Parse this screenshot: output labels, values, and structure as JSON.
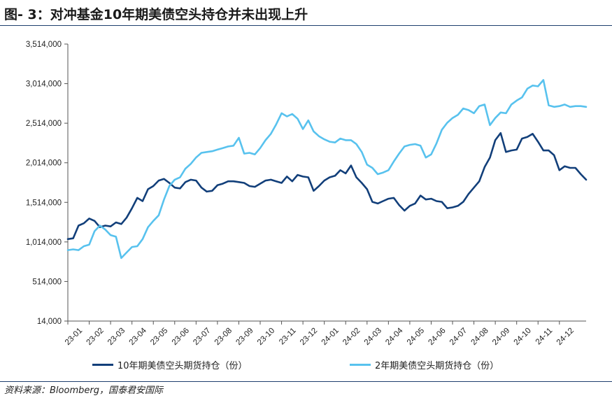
{
  "header": {
    "title": "图- 3：对冲基金10年期美债空头持仓并未出现上升"
  },
  "footer": {
    "source": "资料来源：Bloomberg，国泰君安国际"
  },
  "colors": {
    "series_10y": "#123f7a",
    "series_2y": "#58c2ee",
    "rule": "#1f3f6e",
    "axis": "#555555"
  },
  "chart_data": {
    "type": "line",
    "title": "",
    "xlabel": "",
    "ylabel": "",
    "ylim": [
      14000,
      3514000
    ],
    "yticks": [
      14000,
      514000,
      1014000,
      1514000,
      2014000,
      2514000,
      3014000,
      3514000
    ],
    "ytick_labels": [
      "14,000",
      "514,000",
      "1,014,000",
      "1,514,000",
      "2,014,000",
      "2,514,000",
      "3,014,000",
      "3,514,000"
    ],
    "xlim": [
      0,
      23.5
    ],
    "xticks": [
      0,
      1,
      2,
      3,
      4,
      5,
      6,
      7,
      8,
      9,
      10,
      11,
      12,
      13,
      14,
      15,
      16,
      17,
      18,
      19,
      20,
      21,
      22,
      23
    ],
    "xtick_labels": [
      "23-01",
      "23-02",
      "23-03",
      "23-04",
      "23-05",
      "23-06",
      "23-07",
      "23-08",
      "23-09",
      "23-10",
      "23-11",
      "23-12",
      "24-01",
      "24-02",
      "24-03",
      "24-04",
      "24-05",
      "24-06",
      "24-07",
      "24-08",
      "24-09",
      "24-10",
      "24-11",
      "24-12"
    ],
    "grid": false,
    "legend_position": "bottom",
    "series": [
      {
        "name": "10年期美债空头期货持仓（份）",
        "color": "#123f7a",
        "points": [
          [
            0.0,
            1050000
          ],
          [
            0.25,
            1060000
          ],
          [
            0.5,
            1220000
          ],
          [
            0.75,
            1250000
          ],
          [
            1.0,
            1310000
          ],
          [
            1.25,
            1280000
          ],
          [
            1.5,
            1200000
          ],
          [
            1.75,
            1220000
          ],
          [
            2.0,
            1210000
          ],
          [
            2.25,
            1260000
          ],
          [
            2.5,
            1240000
          ],
          [
            2.75,
            1320000
          ],
          [
            3.0,
            1440000
          ],
          [
            3.25,
            1570000
          ],
          [
            3.5,
            1530000
          ],
          [
            3.75,
            1680000
          ],
          [
            4.0,
            1720000
          ],
          [
            4.25,
            1790000
          ],
          [
            4.5,
            1810000
          ],
          [
            4.75,
            1760000
          ],
          [
            5.0,
            1700000
          ],
          [
            5.25,
            1690000
          ],
          [
            5.5,
            1770000
          ],
          [
            5.75,
            1800000
          ],
          [
            6.0,
            1790000
          ],
          [
            6.25,
            1700000
          ],
          [
            6.5,
            1650000
          ],
          [
            6.75,
            1660000
          ],
          [
            7.0,
            1730000
          ],
          [
            7.25,
            1750000
          ],
          [
            7.5,
            1780000
          ],
          [
            7.75,
            1780000
          ],
          [
            8.0,
            1770000
          ],
          [
            8.25,
            1760000
          ],
          [
            8.5,
            1720000
          ],
          [
            8.75,
            1710000
          ],
          [
            9.0,
            1750000
          ],
          [
            9.25,
            1790000
          ],
          [
            9.5,
            1800000
          ],
          [
            9.75,
            1780000
          ],
          [
            10.0,
            1760000
          ],
          [
            10.25,
            1840000
          ],
          [
            10.5,
            1780000
          ],
          [
            10.75,
            1860000
          ],
          [
            11.0,
            1840000
          ],
          [
            11.25,
            1830000
          ],
          [
            11.5,
            1660000
          ],
          [
            11.75,
            1720000
          ],
          [
            12.0,
            1790000
          ],
          [
            12.25,
            1830000
          ],
          [
            12.5,
            1850000
          ],
          [
            12.75,
            1920000
          ],
          [
            13.0,
            1880000
          ],
          [
            13.25,
            1980000
          ],
          [
            13.5,
            1830000
          ],
          [
            13.75,
            1760000
          ],
          [
            14.0,
            1680000
          ],
          [
            14.25,
            1520000
          ],
          [
            14.5,
            1500000
          ],
          [
            14.75,
            1530000
          ],
          [
            15.0,
            1560000
          ],
          [
            15.25,
            1570000
          ],
          [
            15.5,
            1480000
          ],
          [
            15.75,
            1410000
          ],
          [
            16.0,
            1470000
          ],
          [
            16.25,
            1500000
          ],
          [
            16.5,
            1600000
          ],
          [
            16.75,
            1550000
          ],
          [
            17.0,
            1560000
          ],
          [
            17.25,
            1530000
          ],
          [
            17.5,
            1520000
          ],
          [
            17.75,
            1440000
          ],
          [
            18.0,
            1450000
          ],
          [
            18.25,
            1470000
          ],
          [
            18.5,
            1520000
          ],
          [
            18.75,
            1620000
          ],
          [
            19.0,
            1700000
          ],
          [
            19.25,
            1780000
          ],
          [
            19.5,
            1960000
          ],
          [
            19.75,
            2080000
          ],
          [
            20.0,
            2300000
          ],
          [
            20.25,
            2390000
          ],
          [
            20.5,
            2150000
          ],
          [
            20.75,
            2170000
          ],
          [
            21.0,
            2180000
          ],
          [
            21.25,
            2320000
          ],
          [
            21.5,
            2340000
          ],
          [
            21.75,
            2380000
          ],
          [
            22.0,
            2280000
          ],
          [
            22.25,
            2170000
          ],
          [
            22.5,
            2170000
          ],
          [
            22.75,
            2110000
          ],
          [
            23.0,
            1920000
          ],
          [
            23.25,
            1970000
          ],
          [
            23.5,
            1950000
          ],
          [
            23.75,
            1950000
          ],
          [
            24.0,
            1870000
          ],
          [
            24.25,
            1800000
          ]
        ]
      },
      {
        "name": "2年期美债空头期货持仓（份）",
        "color": "#58c2ee",
        "points": [
          [
            0.0,
            910000
          ],
          [
            0.25,
            920000
          ],
          [
            0.5,
            910000
          ],
          [
            0.75,
            960000
          ],
          [
            1.0,
            980000
          ],
          [
            1.25,
            1150000
          ],
          [
            1.5,
            1220000
          ],
          [
            1.75,
            1170000
          ],
          [
            2.0,
            1100000
          ],
          [
            2.25,
            1080000
          ],
          [
            2.5,
            810000
          ],
          [
            2.75,
            880000
          ],
          [
            3.0,
            950000
          ],
          [
            3.25,
            960000
          ],
          [
            3.5,
            1050000
          ],
          [
            3.75,
            1200000
          ],
          [
            4.0,
            1280000
          ],
          [
            4.25,
            1350000
          ],
          [
            4.5,
            1550000
          ],
          [
            4.75,
            1720000
          ],
          [
            5.0,
            1800000
          ],
          [
            5.25,
            1830000
          ],
          [
            5.5,
            1940000
          ],
          [
            5.75,
            2000000
          ],
          [
            6.0,
            2080000
          ],
          [
            6.25,
            2140000
          ],
          [
            6.5,
            2150000
          ],
          [
            6.75,
            2160000
          ],
          [
            7.0,
            2180000
          ],
          [
            7.25,
            2200000
          ],
          [
            7.5,
            2220000
          ],
          [
            7.75,
            2230000
          ],
          [
            8.0,
            2330000
          ],
          [
            8.25,
            2130000
          ],
          [
            8.5,
            2140000
          ],
          [
            8.75,
            2120000
          ],
          [
            9.0,
            2200000
          ],
          [
            9.25,
            2300000
          ],
          [
            9.5,
            2380000
          ],
          [
            9.75,
            2500000
          ],
          [
            10.0,
            2640000
          ],
          [
            10.25,
            2600000
          ],
          [
            10.5,
            2630000
          ],
          [
            10.75,
            2570000
          ],
          [
            11.0,
            2440000
          ],
          [
            11.25,
            2550000
          ],
          [
            11.5,
            2410000
          ],
          [
            11.75,
            2350000
          ],
          [
            12.0,
            2310000
          ],
          [
            12.25,
            2280000
          ],
          [
            12.5,
            2270000
          ],
          [
            12.75,
            2320000
          ],
          [
            13.0,
            2300000
          ],
          [
            13.25,
            2300000
          ],
          [
            13.5,
            2250000
          ],
          [
            13.75,
            2150000
          ],
          [
            14.0,
            1990000
          ],
          [
            14.25,
            1950000
          ],
          [
            14.5,
            1870000
          ],
          [
            14.75,
            1890000
          ],
          [
            15.0,
            1920000
          ],
          [
            15.25,
            2030000
          ],
          [
            15.5,
            2130000
          ],
          [
            15.75,
            2220000
          ],
          [
            16.0,
            2240000
          ],
          [
            16.25,
            2250000
          ],
          [
            16.5,
            2230000
          ],
          [
            16.75,
            2080000
          ],
          [
            17.0,
            2120000
          ],
          [
            17.25,
            2260000
          ],
          [
            17.5,
            2430000
          ],
          [
            17.75,
            2520000
          ],
          [
            18.0,
            2580000
          ],
          [
            18.25,
            2620000
          ],
          [
            18.5,
            2700000
          ],
          [
            18.75,
            2680000
          ],
          [
            19.0,
            2640000
          ],
          [
            19.25,
            2730000
          ],
          [
            19.5,
            2750000
          ],
          [
            19.75,
            2490000
          ],
          [
            20.0,
            2580000
          ],
          [
            20.25,
            2650000
          ],
          [
            20.5,
            2640000
          ],
          [
            20.75,
            2750000
          ],
          [
            21.0,
            2800000
          ],
          [
            21.25,
            2840000
          ],
          [
            21.5,
            2950000
          ],
          [
            21.75,
            2990000
          ],
          [
            22.0,
            2980000
          ],
          [
            22.25,
            3060000
          ],
          [
            22.5,
            2740000
          ],
          [
            22.75,
            2720000
          ],
          [
            23.0,
            2730000
          ],
          [
            23.25,
            2750000
          ],
          [
            23.5,
            2720000
          ],
          [
            23.75,
            2730000
          ],
          [
            24.0,
            2730000
          ],
          [
            24.25,
            2720000
          ]
        ]
      }
    ]
  }
}
